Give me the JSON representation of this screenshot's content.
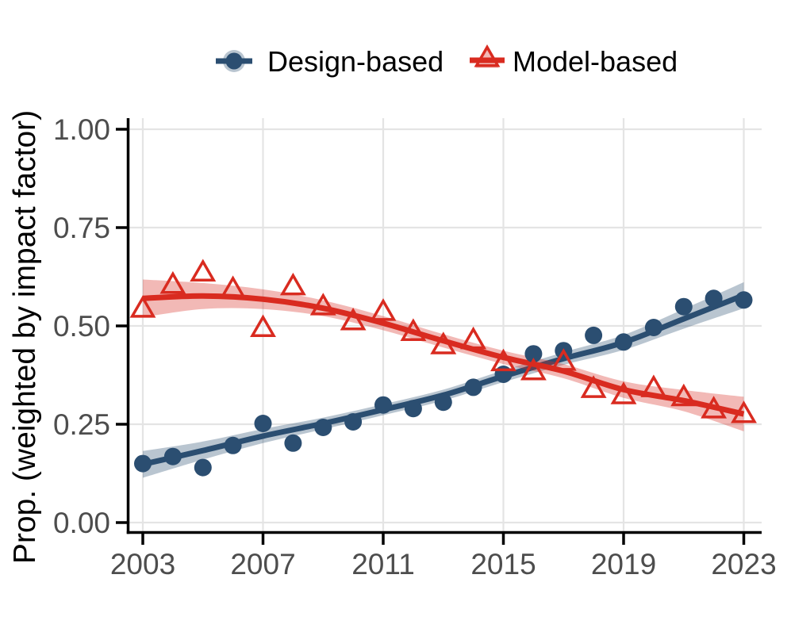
{
  "legend": {
    "position": "top-center",
    "items": [
      {
        "id": "design",
        "label": "Design-based"
      },
      {
        "id": "model",
        "label": "Model-based"
      }
    ]
  },
  "chart_data": {
    "type": "scatter",
    "subtype": "yearly points with loess smooth trend lines and confidence ribbons",
    "title": "",
    "xlabel": "",
    "ylabel": "Prop. (weighted by impact factor)",
    "xlim": [
      2002,
      2024
    ],
    "ylim": [
      0.0,
      1.0
    ],
    "grid": "major gridlines only",
    "legend_position": "top center",
    "x_ticks": [
      "2003",
      "2007",
      "2011",
      "2015",
      "2019",
      "2023"
    ],
    "y_ticks": [
      "0.00",
      "0.25",
      "0.50",
      "0.75",
      "1.00"
    ],
    "years": [
      2003,
      2004,
      2005,
      2006,
      2007,
      2008,
      2009,
      2010,
      2011,
      2012,
      2013,
      2014,
      2015,
      2016,
      2017,
      2018,
      2019,
      2020,
      2021,
      2022,
      2023
    ],
    "series": [
      {
        "id": "design",
        "name": "Design-based",
        "marker": "filled-circle",
        "color": "#2b4e71",
        "band_opacity": 0.33,
        "values": [
          0.15,
          0.168,
          0.14,
          0.196,
          0.252,
          0.202,
          0.242,
          0.256,
          0.299,
          0.29,
          0.306,
          0.344,
          0.377,
          0.429,
          0.437,
          0.476,
          0.459,
          0.496,
          0.549,
          0.57,
          0.566
        ],
        "trend_x": [
          2003,
          2005,
          2007,
          2009,
          2011,
          2013,
          2015,
          2017,
          2019,
          2021,
          2023
        ],
        "trend_y": [
          0.148,
          0.183,
          0.22,
          0.252,
          0.287,
          0.324,
          0.372,
          0.417,
          0.458,
          0.518,
          0.578
        ],
        "trend_halfwidth": [
          0.034,
          0.023,
          0.018,
          0.015,
          0.014,
          0.014,
          0.015,
          0.016,
          0.019,
          0.025,
          0.033
        ]
      },
      {
        "id": "model",
        "name": "Model-based",
        "marker": "open-triangle",
        "color": "#d92b20",
        "band_opacity": 0.33,
        "values": [
          0.54,
          0.601,
          0.632,
          0.59,
          0.491,
          0.597,
          0.546,
          0.508,
          0.532,
          0.481,
          0.447,
          0.46,
          0.404,
          0.381,
          0.405,
          0.336,
          0.32,
          0.338,
          0.315,
          0.284,
          0.272
        ],
        "trend_x": [
          2003,
          2005,
          2007,
          2009,
          2011,
          2013,
          2015,
          2017,
          2019,
          2021,
          2023
        ],
        "trend_y": [
          0.57,
          0.576,
          0.568,
          0.545,
          0.507,
          0.462,
          0.42,
          0.385,
          0.338,
          0.31,
          0.276
        ],
        "trend_halfwidth": [
          0.048,
          0.033,
          0.025,
          0.02,
          0.018,
          0.017,
          0.017,
          0.018,
          0.021,
          0.027,
          0.044
        ]
      }
    ],
    "style": {
      "background": "#ffffff",
      "grid_color": "#e4e4e4",
      "axis_color": "#000000",
      "tick_label_color": "#4d4d4d",
      "axis_title_color": "#000000",
      "legend_text_color": "#000000"
    }
  }
}
